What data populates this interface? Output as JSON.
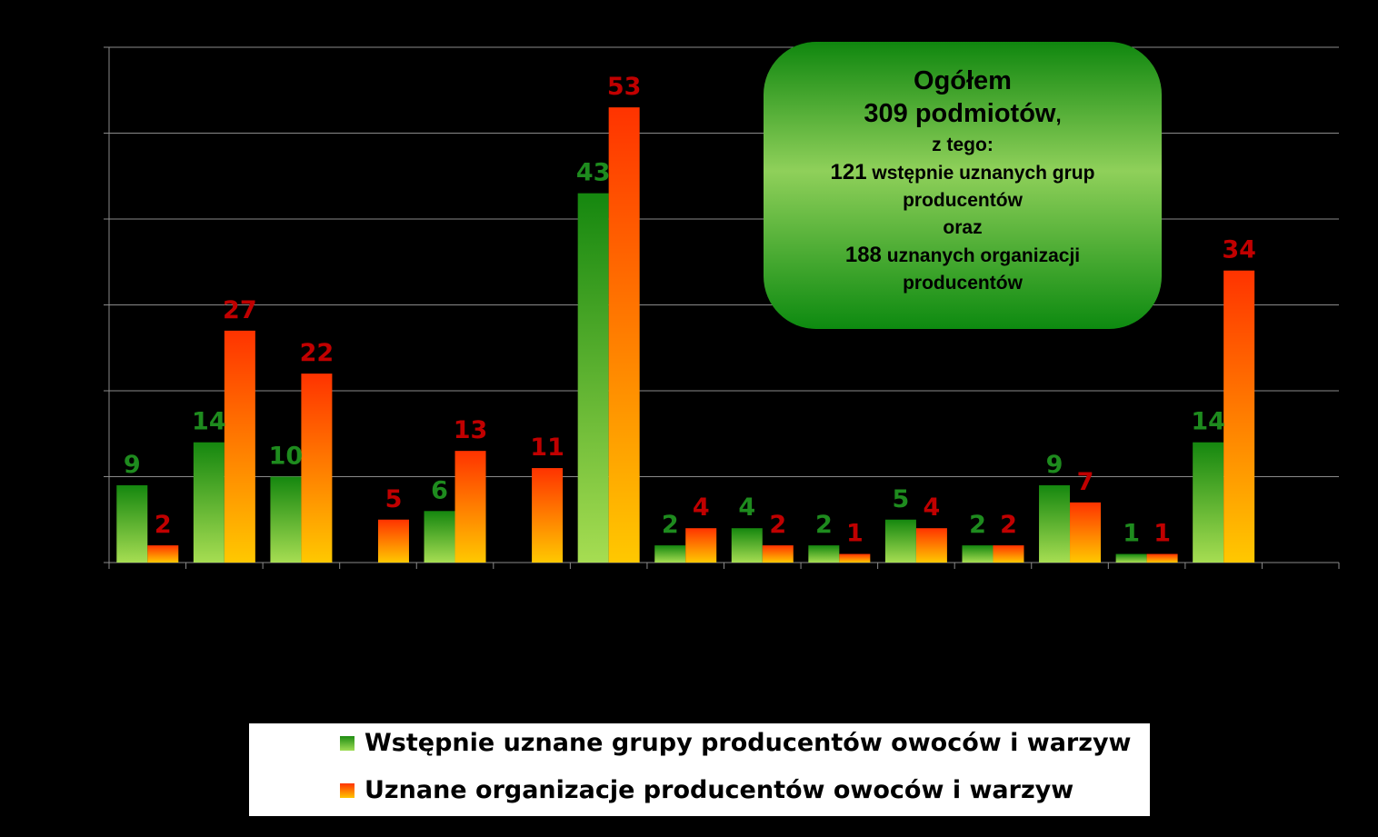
{
  "chart_data": {
    "type": "bar",
    "categories": [
      "",
      "",
      "",
      "",
      "",
      "",
      "",
      "",
      "",
      "",
      "",
      "",
      "",
      "",
      "",
      ""
    ],
    "series": [
      {
        "name": "Wstępnie uznane grupy producentów owoców i warzyw",
        "values": [
          9,
          14,
          10,
          null,
          6,
          null,
          43,
          2,
          4,
          2,
          5,
          2,
          9,
          1,
          14,
          null
        ],
        "color": "#1a8a10",
        "label_color": "#1e8b1e"
      },
      {
        "name": "Uznane organizacje producentów owoców i warzyw",
        "values": [
          2,
          27,
          22,
          5,
          13,
          11,
          53,
          4,
          2,
          1,
          4,
          2,
          7,
          1,
          34,
          null
        ],
        "color": "#ff4400",
        "label_color": "#c00000"
      }
    ],
    "ylim": [
      0,
      60
    ],
    "grid": true,
    "legend_placement": "bottom"
  },
  "info_box": {
    "line1": "Ogółem",
    "line2a": "309 podmiotów",
    "line2b": ",",
    "line3": "z tego:",
    "line4a": "121",
    "line4b": " wstępnie uznanych grup",
    "line5": "producentów",
    "line6": "oraz",
    "line7a": "188",
    "line7b": " uznanych organizacji",
    "line8": "producentów"
  },
  "legend": {
    "item1": "Wstępnie uznane grupy producentów owoców i warzyw",
    "item2": "Uznane organizacje producentów owoców i warzyw"
  }
}
